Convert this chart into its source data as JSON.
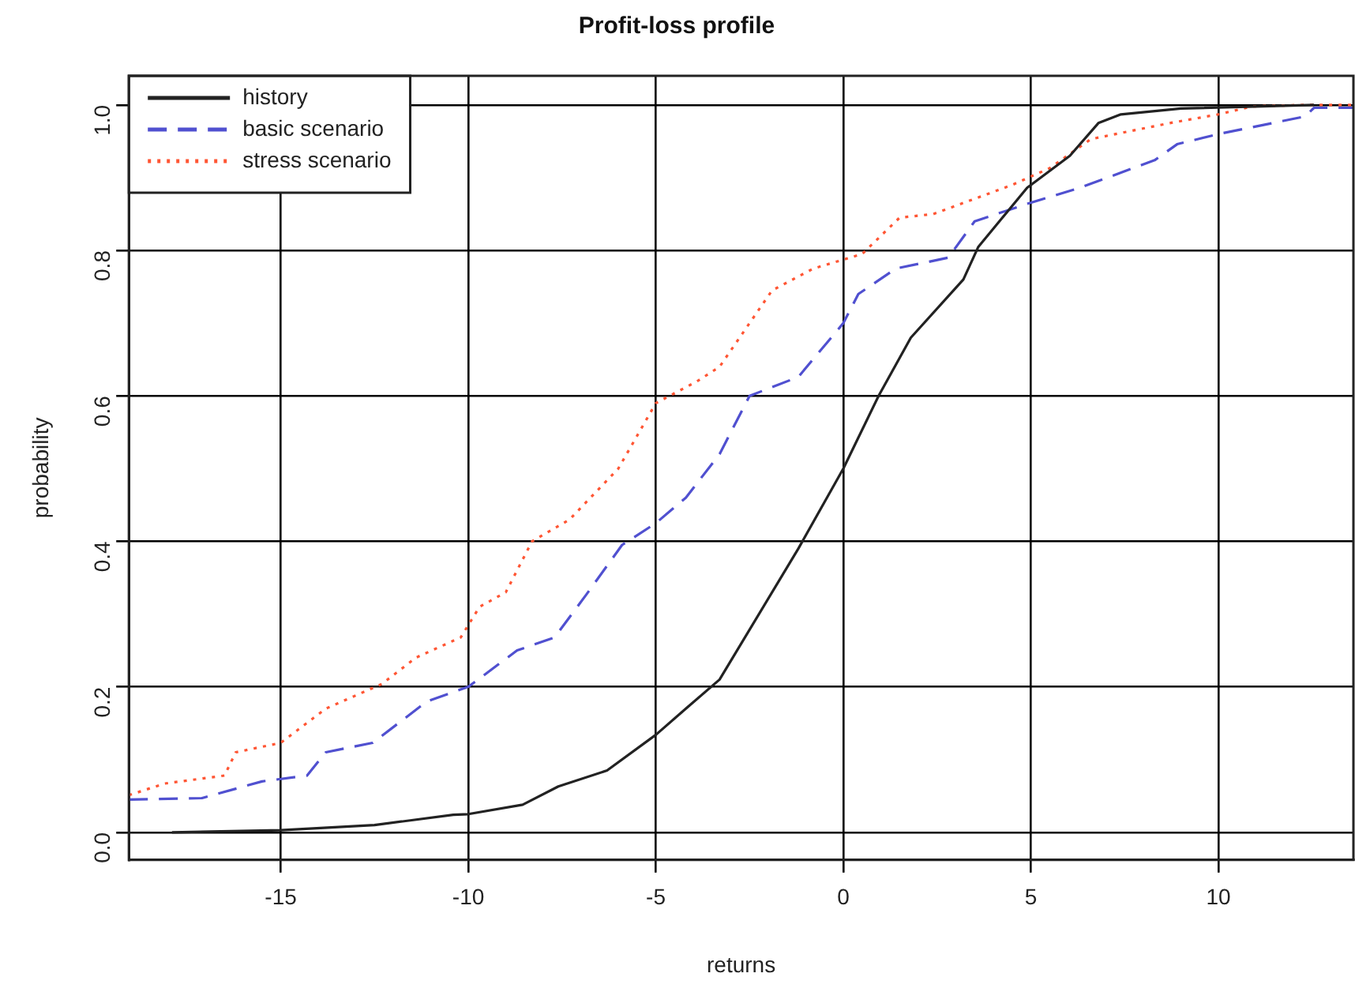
{
  "chart_data": {
    "type": "line",
    "title": "Profit-loss profile",
    "xlabel": "returns",
    "ylabel": "probability",
    "xlim": [
      -19.05,
      13.6
    ],
    "xticks": [
      -15,
      -10,
      -5,
      0,
      5,
      10
    ],
    "ylim": [
      -0.038,
      1.04
    ],
    "yticks": [
      {
        "value": 0,
        "label": "0.0"
      },
      {
        "value": 0.2,
        "label": "0.2"
      },
      {
        "value": 0.4,
        "label": "0.4"
      },
      {
        "value": 0.6,
        "label": "0.6"
      },
      {
        "value": 0.8,
        "label": "0.8"
      },
      {
        "value": 1,
        "label": "1.0"
      }
    ],
    "grid": true,
    "legend": "top left",
    "marker": "none",
    "series": [
      {
        "name": "history",
        "color": "#222222",
        "line_style": "solid",
        "x": [
          -17.9,
          -15,
          -12.5,
          -10.4,
          -10,
          -8.55,
          -7.6,
          -6.3,
          -5,
          -4.2,
          -3.3,
          -1.2,
          0,
          0.94,
          1.8,
          3.2,
          3.6,
          4.9,
          6.04,
          6.8,
          7.4,
          9,
          12.55
        ],
        "values": [
          0,
          0.003,
          0.01,
          0.024,
          0.025,
          0.038,
          0.063,
          0.085,
          0.134,
          0.17,
          0.21,
          0.39,
          0.5,
          0.6,
          0.68,
          0.76,
          0.805,
          0.886,
          0.93,
          0.975,
          0.987,
          0.995,
          1
        ]
      },
      {
        "name": "basic scenario",
        "color": "#5050d0",
        "line_style": "dashed",
        "x": [
          -19.05,
          -17.1,
          -15.5,
          -14.3,
          -13.8,
          -12.55,
          -11.1,
          -10,
          -8.7,
          -7.7,
          -6.85,
          -5.9,
          -5,
          -4.2,
          -3.3,
          -2.5,
          -1.2,
          0,
          0.4,
          1.4,
          2.8,
          3.5,
          4.9,
          6.3,
          8.3,
          8.9,
          10,
          12.3,
          12.55,
          13.6
        ],
        "values": [
          0.045,
          0.047,
          0.07,
          0.078,
          0.11,
          0.123,
          0.18,
          0.2,
          0.25,
          0.268,
          0.327,
          0.395,
          0.425,
          0.46,
          0.52,
          0.6,
          0.626,
          0.7,
          0.74,
          0.775,
          0.79,
          0.84,
          0.864,
          0.886,
          0.924,
          0.946,
          0.96,
          0.984,
          0.996,
          0.996
        ]
      },
      {
        "name": "stress scenario",
        "color": "#ff5533",
        "line_style": "dotted",
        "x": [
          -19.05,
          -18.1,
          -16.5,
          -16.2,
          -15,
          -13.8,
          -12.3,
          -11.4,
          -10.2,
          -9.7,
          -9,
          -8.3,
          -7.3,
          -6,
          -5,
          -3.9,
          -3.3,
          -2.5,
          -1.9,
          -0.8,
          0.5,
          1.5,
          2.4,
          4.5,
          5.5,
          6.6,
          8.7,
          10,
          10.9,
          12.3,
          13.6
        ],
        "values": [
          0.051,
          0.067,
          0.078,
          0.11,
          0.123,
          0.17,
          0.204,
          0.24,
          0.268,
          0.31,
          0.33,
          0.4,
          0.43,
          0.5,
          0.59,
          0.62,
          0.64,
          0.7,
          0.745,
          0.775,
          0.795,
          0.845,
          0.85,
          0.89,
          0.913,
          0.953,
          0.975,
          0.987,
          0.998,
          1,
          1
        ]
      }
    ]
  }
}
